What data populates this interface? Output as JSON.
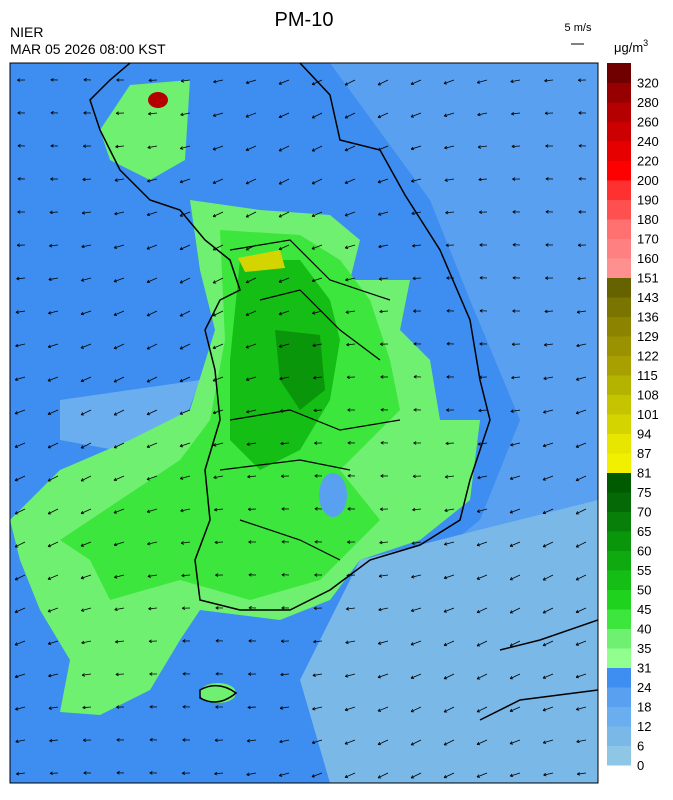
{
  "header": {
    "title": "PM-10",
    "agency": "NIER",
    "datetime": "MAR 05 2026 08:00 KST",
    "wind_scale": "5 m/s",
    "unit": {
      "base": "μg/m",
      "exp": "3"
    }
  },
  "legend": {
    "labels": [
      0,
      6,
      12,
      18,
      24,
      31,
      35,
      40,
      45,
      50,
      55,
      60,
      65,
      70,
      75,
      81,
      87,
      94,
      101,
      108,
      115,
      122,
      129,
      136,
      143,
      151,
      160,
      170,
      180,
      190,
      200,
      220,
      240,
      260,
      280,
      320
    ],
    "colors": [
      "#8ec6e6",
      "#7ab8e8",
      "#6aaef0",
      "#5aa0f0",
      "#3d8ef0",
      "#90ff90",
      "#70f070",
      "#3ce63c",
      "#1ed21e",
      "#14be14",
      "#0faa0f",
      "#0a960a",
      "#087f08",
      "#056a05",
      "#005a00",
      "#f0f000",
      "#e6e600",
      "#d4d400",
      "#c4c400",
      "#b4b400",
      "#a8a000",
      "#9a9200",
      "#8c8400",
      "#7a7400",
      "#666200",
      "#ff9090",
      "#ff8080",
      "#ff7070",
      "#ff5050",
      "#ff3030",
      "#ff0000",
      "#e60000",
      "#cc0000",
      "#b40000",
      "#960000",
      "#700000"
    ]
  }
}
